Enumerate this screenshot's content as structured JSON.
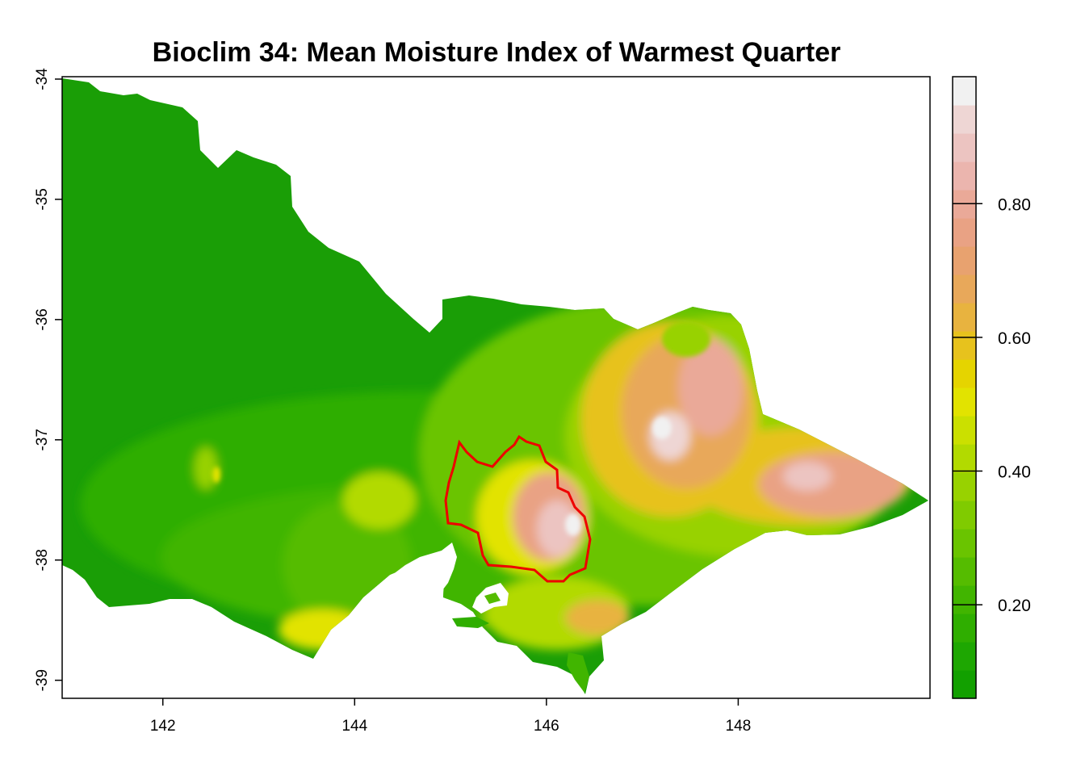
{
  "title": "Bioclim 34: Mean Moisture Index of Warmest Quarter",
  "map": {
    "x_ticks": [
      "142",
      "144",
      "146",
      "148"
    ],
    "x_tick_values": [
      142,
      144,
      146,
      148
    ],
    "x_range": [
      140.95,
      150.0
    ],
    "y_ticks": [
      "-34",
      "-35",
      "-36",
      "-37",
      "-38",
      "-39"
    ],
    "y_tick_values": [
      -34,
      -35,
      -36,
      -37,
      -38,
      -39
    ],
    "y_range": [
      -39.15,
      -33.98
    ],
    "region_outline_color": "#ee0000",
    "colors": {
      "low": "#1a9e06",
      "mid_low": "#4fbb00",
      "mid": "#a6d600",
      "yellow": "#e3de00",
      "orange": "#e7a86c",
      "high": "#f1f1f1"
    }
  },
  "legend": {
    "labels": [
      "0.80",
      "0.60",
      "0.40",
      "0.20"
    ],
    "values": [
      0.8,
      0.6,
      0.4,
      0.2
    ],
    "range": [
      0.06,
      0.99
    ],
    "colors": [
      "#12a000",
      "#1ea702",
      "#2fae00",
      "#41b500",
      "#55bc00",
      "#6ac400",
      "#80cb00",
      "#98d200",
      "#b2da00",
      "#cbe000",
      "#e2e300",
      "#e5d400",
      "#e7c21d",
      "#e8b33f",
      "#e8a85a",
      "#e8a26f",
      "#e9a284",
      "#eaa998",
      "#ebb5ae",
      "#ecc4c1",
      "#eed6d4",
      "#f1f1f1"
    ]
  }
}
